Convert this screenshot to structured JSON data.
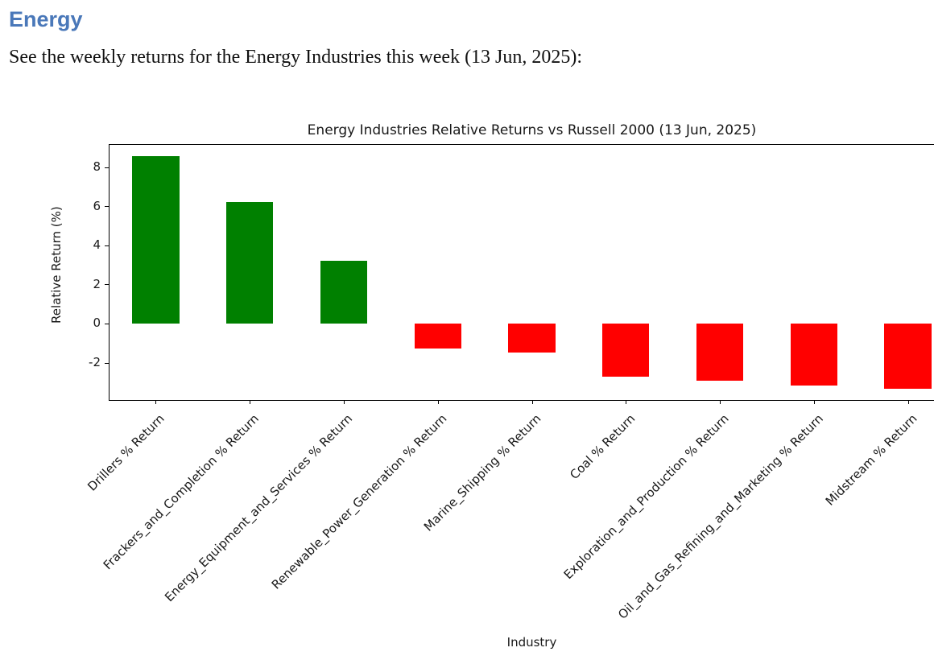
{
  "doc": {
    "heading": "Energy",
    "intro": "See the weekly returns for the Energy Industries this week (13 Jun, 2025):"
  },
  "colors": {
    "heading_blue": "#4a78b9",
    "bar_positive": "#008000",
    "bar_negative": "#ff0000",
    "axis_text": "#191919"
  },
  "chart_data": {
    "type": "bar",
    "title": "Energy Industries Relative Returns vs Russell 2000 (13 Jun, 2025)",
    "xlabel": "Industry",
    "ylabel": "Relative Return (%)",
    "categories": [
      "Drillers % Return",
      "Frackers_and_Completion % Return",
      "Energy_Equipment_and_Services % Return",
      "Renewable_Power_Generation % Return",
      "Marine_Shipping % Return",
      "Coal % Return",
      "Exploration_and_Production % Return",
      "Oil_and_Gas_Refining_and_Marketing % Return",
      "Midstream % Return"
    ],
    "values": [
      8.6,
      6.25,
      3.25,
      -1.25,
      -1.45,
      -2.7,
      -2.9,
      -3.15,
      -3.3
    ],
    "yticks": [
      -2,
      0,
      2,
      4,
      6,
      8
    ],
    "ylim": [
      -3.85,
      9.2
    ],
    "bar_width_fraction": 0.5,
    "grid": false,
    "legend": null
  }
}
